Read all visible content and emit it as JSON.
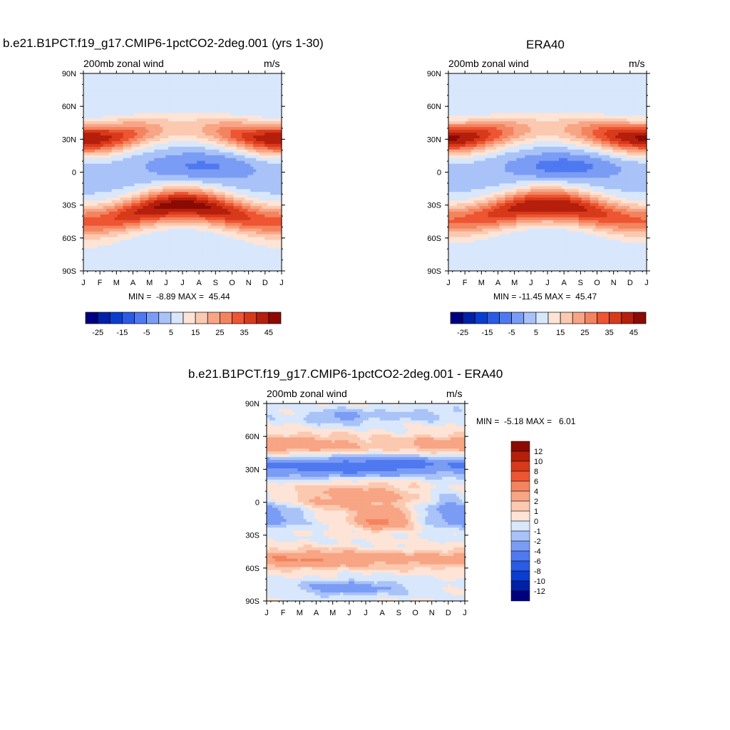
{
  "panels": {
    "model": {
      "title": "b.e21.B1PCT.f19_g17.CMIP6-1pctCO2-2deg.001 (yrs 1-30)",
      "subtitle_left": "200mb zonal wind",
      "subtitle_right": "m/s",
      "stats": "MIN =  -8.89 MAX =  45.44"
    },
    "obs": {
      "title": "ERA40",
      "subtitle_left": "200mb zonal wind",
      "subtitle_right": "m/s",
      "stats": "MIN = -11.45 MAX =  45.47"
    },
    "diff": {
      "title": "b.e21.B1PCT.f19_g17.CMIP6-1pctCO2-2deg.001 - ERA40",
      "subtitle_left": "200mb zonal wind",
      "subtitle_right": "m/s",
      "stats": "MIN =  -5.18 MAX =   6.01"
    }
  },
  "chart_data": [
    {
      "type": "heatmap",
      "name": "model",
      "title": "b.e21.B1PCT.f19_g17.CMIP6-1pctCO2-2deg.001 (yrs 1-30)",
      "variable": "200mb zonal wind",
      "units": "m/s",
      "x_ticks": [
        "J",
        "F",
        "M",
        "A",
        "M",
        "J",
        "J",
        "A",
        "S",
        "O",
        "N",
        "D",
        "J"
      ],
      "y_ticks": [
        "90N",
        "60N",
        "30N",
        "0",
        "30S",
        "60S",
        "90S"
      ],
      "ylim": [
        -90,
        90
      ],
      "min": -8.89,
      "max": 45.44,
      "colorbar_labels": [
        "-25",
        "-15",
        "-5",
        "5",
        "15",
        "25",
        "35",
        "45"
      ],
      "features": [
        {
          "lat": 30,
          "month": 0.3,
          "value": 42
        },
        {
          "lat": 30,
          "month": 11.6,
          "value": 40
        },
        {
          "lat": -28,
          "month": 6.8,
          "value": 45
        },
        {
          "lat": 5,
          "month": 7.2,
          "value": -8
        },
        {
          "lat": -45,
          "month": 0.5,
          "value": 35
        }
      ]
    },
    {
      "type": "heatmap",
      "name": "obs",
      "title": "ERA40",
      "variable": "200mb zonal wind",
      "units": "m/s",
      "x_ticks": [
        "J",
        "F",
        "M",
        "A",
        "M",
        "J",
        "J",
        "A",
        "S",
        "O",
        "N",
        "D",
        "J"
      ],
      "y_ticks": [
        "90N",
        "60N",
        "30N",
        "0",
        "30S",
        "60S",
        "90S"
      ],
      "ylim": [
        -90,
        90
      ],
      "min": -11.45,
      "max": 45.47,
      "colorbar_labels": [
        "-25",
        "-15",
        "-5",
        "5",
        "15",
        "25",
        "35",
        "45"
      ],
      "features": [
        {
          "lat": 30,
          "month": 0.3,
          "value": 43
        },
        {
          "lat": 30,
          "month": 11.6,
          "value": 40
        },
        {
          "lat": -28,
          "month": 6.8,
          "value": 42
        },
        {
          "lat": 5,
          "month": 7.0,
          "value": -11
        }
      ]
    },
    {
      "type": "heatmap",
      "name": "difference",
      "title": "b.e21.B1PCT.f19_g17.CMIP6-1pctCO2-2deg.001 - ERA40",
      "variable": "200mb zonal wind",
      "units": "m/s",
      "x_ticks": [
        "J",
        "F",
        "M",
        "A",
        "M",
        "J",
        "J",
        "A",
        "S",
        "O",
        "N",
        "D",
        "J"
      ],
      "y_ticks": [
        "90N",
        "60N",
        "30N",
        "0",
        "30S",
        "60S",
        "90S"
      ],
      "ylim": [
        -90,
        90
      ],
      "min": -5.18,
      "max": 6.01,
      "colorbar_labels": [
        "12",
        "10",
        "8",
        "6",
        "4",
        "2",
        "1",
        "0",
        "-1",
        "-2",
        "-4",
        "-6",
        "-8",
        "-10",
        "-12"
      ],
      "features": [
        {
          "lat": 32,
          "month": 3.8,
          "value": -5
        },
        {
          "lat": 50,
          "month": 2.5,
          "value": 3
        },
        {
          "lat": 5,
          "month": 5.5,
          "value": 3
        },
        {
          "lat": -17,
          "month": 7.0,
          "value": 5
        },
        {
          "lat": -52,
          "month": 2.0,
          "value": 4
        },
        {
          "lat": -78,
          "month": 5.0,
          "value": -3
        },
        {
          "lat": 78,
          "month": 5.0,
          "value": -2
        }
      ]
    }
  ],
  "colors": {
    "model_obs_levels": [
      "#00007f",
      "#0020a8",
      "#0a3ed0",
      "#2a5ae6",
      "#4f79f0",
      "#7b9cf5",
      "#a9c3f8",
      "#d8e7fb",
      "#fde4d6",
      "#fbc9b0",
      "#f7a585",
      "#f3845f",
      "#ee5532",
      "#d73a1b",
      "#b51f0c",
      "#8b0b04"
    ],
    "diff_levels": [
      "#8b0b04",
      "#b51f0c",
      "#d73a1b",
      "#ee5532",
      "#f3845f",
      "#f7a585",
      "#fbc9b0",
      "#fde4d6",
      "#d8e7fb",
      "#a9c3f8",
      "#7b9cf5",
      "#4f79f0",
      "#2a5ae6",
      "#0a3ed0",
      "#0020a8",
      "#00007f"
    ]
  }
}
